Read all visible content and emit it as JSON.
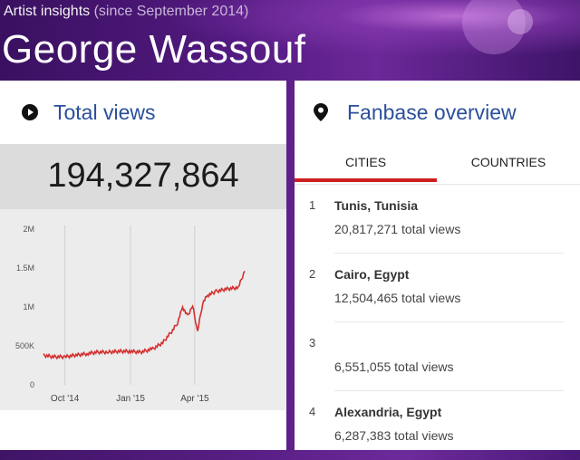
{
  "header": {
    "subtitle": "Artist insights",
    "since": "(since September 2014)",
    "artist_name": "George Wassouf"
  },
  "total_views": {
    "title": "Total views",
    "icon": "play-circle-icon",
    "count": "194,327,864"
  },
  "chart_data": {
    "type": "line",
    "y_ticks": [
      "2M",
      "1.5M",
      "1M",
      "500K",
      "0"
    ],
    "x_ticks": [
      "Oct '14",
      "Jan '15",
      "Apr '15"
    ],
    "ylim": [
      0,
      2000000
    ],
    "grid": true,
    "color": "#d32f2f",
    "series": [
      {
        "x": [
          "2014-09-01",
          "2014-09-15",
          "2014-10-01",
          "2014-10-15",
          "2014-11-01",
          "2014-11-15",
          "2014-12-01",
          "2014-12-15",
          "2015-01-01",
          "2015-01-15",
          "2015-02-01",
          "2015-02-15",
          "2015-03-01",
          "2015-03-08",
          "2015-03-15",
          "2015-03-22",
          "2015-03-29",
          "2015-04-05",
          "2015-04-12",
          "2015-04-19",
          "2015-05-01",
          "2015-05-15",
          "2015-06-01",
          "2015-06-10"
        ],
        "values": [
          380000,
          360000,
          360000,
          380000,
          400000,
          420000,
          420000,
          430000,
          430000,
          420000,
          460000,
          540000,
          700000,
          800000,
          1000000,
          880000,
          1020000,
          680000,
          1050000,
          1150000,
          1200000,
          1230000,
          1250000,
          1460000
        ]
      }
    ]
  },
  "fanbase": {
    "title": "Fanbase overview",
    "icon": "location-pin-icon",
    "tabs": [
      "CITIES",
      "COUNTRIES"
    ],
    "active_tab": "CITIES",
    "cities": [
      {
        "rank": "1",
        "name": "Tunis, Tunisia",
        "views": "20,817,271 total views"
      },
      {
        "rank": "2",
        "name": "Cairo, Egypt",
        "views": "12,504,465 total views"
      },
      {
        "rank": "3",
        "name": "",
        "views": "6,551,055 total views"
      },
      {
        "rank": "4",
        "name": "Alexandria, Egypt",
        "views": "6,287,383 total views"
      }
    ]
  }
}
